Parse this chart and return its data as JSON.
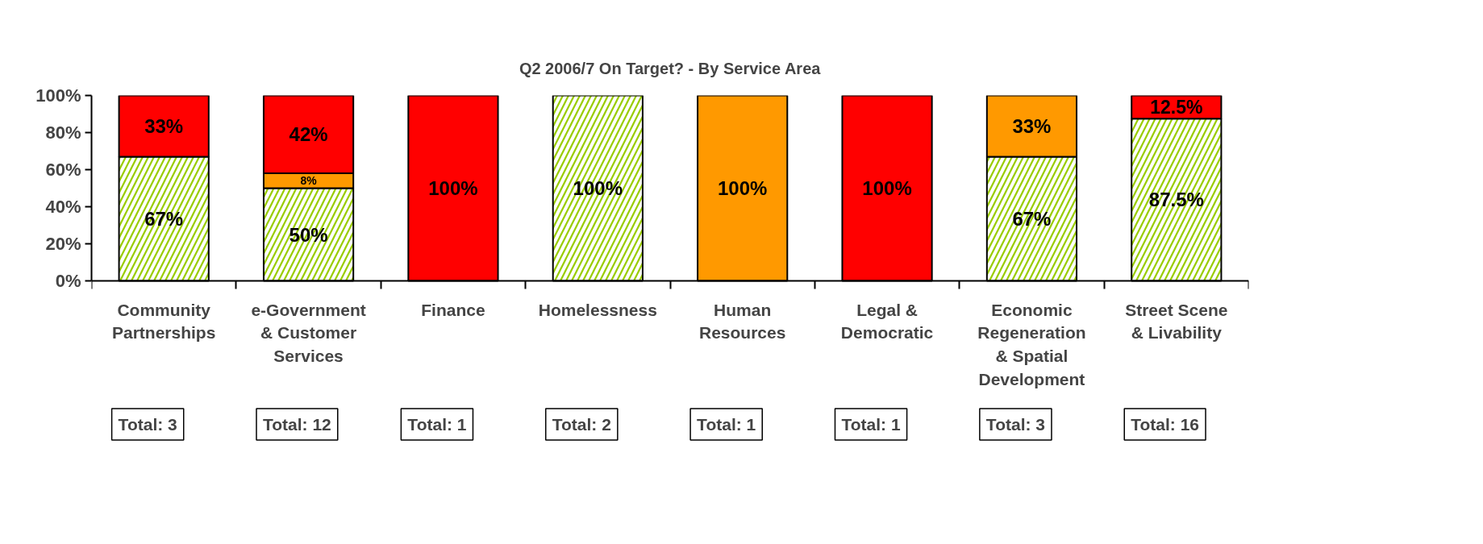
{
  "chart_data": {
    "type": "bar",
    "stacked": true,
    "title": "Q2 2006/7 On Target? - By Service Area",
    "categories": [
      "Community Partnerships",
      "e-Government & Customer Services",
      "Finance",
      "Homelessness",
      "Human Resources",
      "Legal & Democratic",
      "Economic Regeneration & Spatial Development",
      "Street Scene & Livability"
    ],
    "series": [
      {
        "color": "#99cc00",
        "values": [
          67,
          50,
          null,
          100,
          null,
          null,
          67,
          87.5
        ],
        "value_labels": [
          "67%",
          "50%",
          null,
          "100%",
          null,
          null,
          "67%",
          "87.5%"
        ]
      },
      {
        "color": "#ff9900",
        "values": [
          null,
          8,
          null,
          null,
          100,
          null,
          33,
          null
        ],
        "value_labels": [
          null,
          "8%",
          null,
          null,
          "100%",
          null,
          "33%",
          null
        ]
      },
      {
        "color": "#ff0000",
        "values": [
          33,
          42,
          100,
          null,
          null,
          100,
          null,
          12.5
        ],
        "value_labels": [
          "33%",
          "42%",
          "100%",
          null,
          null,
          "100%",
          null,
          "12.5%"
        ]
      }
    ],
    "ylim": [
      0,
      100
    ],
    "yticks": [
      {
        "value": 0,
        "label": "0%"
      },
      {
        "value": 20,
        "label": "20%"
      },
      {
        "value": 40,
        "label": "40%"
      },
      {
        "value": 60,
        "label": "60%"
      },
      {
        "value": 80,
        "label": "80%"
      },
      {
        "value": 100,
        "label": "100%"
      }
    ],
    "grid": false,
    "annotations": [
      "Total: 3",
      "Total: 12",
      "Total: 1",
      "Total: 2",
      "Total: 1",
      "Total: 1",
      "Total: 3",
      "Total: 16"
    ]
  }
}
